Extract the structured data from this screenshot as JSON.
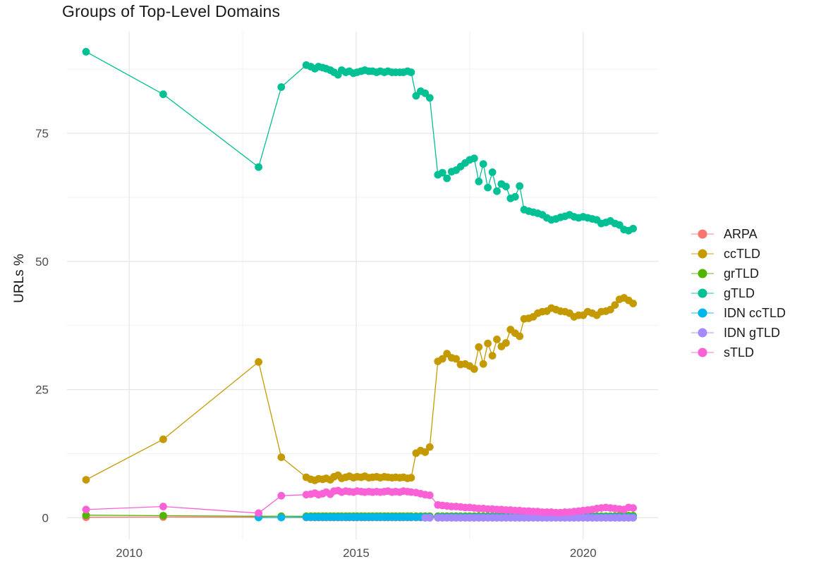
{
  "title": "Groups of Top-Level Domains",
  "y_axis": {
    "label": "URLs %",
    "ticks": [
      "0",
      "25",
      "50",
      "75"
    ]
  },
  "x_axis": {
    "ticks": [
      "2010",
      "2015",
      "2020"
    ]
  },
  "legend": {
    "items": [
      {
        "label": "ARPA",
        "color": "#F8766D"
      },
      {
        "label": "ccTLD",
        "color": "#C49A00"
      },
      {
        "label": "grTLD",
        "color": "#53B400"
      },
      {
        "label": "gTLD",
        "color": "#00C094"
      },
      {
        "label": "IDN ccTLD",
        "color": "#00B6EB"
      },
      {
        "label": "IDN gTLD",
        "color": "#A58AFF"
      },
      {
        "label": "sTLD",
        "color": "#FB61D7"
      }
    ]
  },
  "chart_data": {
    "type": "line",
    "title": "Groups of Top-Level Domains",
    "xlabel": "",
    "ylabel": "URLs %",
    "grid": true,
    "legend_position": "right",
    "xlim": [
      2008.63,
      2021.65
    ],
    "ylim": [
      -4.2,
      94.8
    ],
    "x_ticks": [
      2010,
      2015,
      2020
    ],
    "x_minor_ticks": [
      2012.5,
      2017.5
    ],
    "y_ticks": [
      0,
      25,
      50,
      75
    ],
    "y_minor_ticks": [
      12.5,
      37.5,
      62.5,
      87.5
    ],
    "x": [
      2009.05,
      2010.75,
      2012.85,
      2013.35,
      2013.9,
      2014.0,
      2014.09,
      2014.17,
      2014.26,
      2014.34,
      2014.43,
      2014.51,
      2014.6,
      2014.68,
      2014.77,
      2014.85,
      2014.94,
      2015.02,
      2015.11,
      2015.19,
      2015.28,
      2015.36,
      2015.45,
      2015.53,
      2015.62,
      2015.7,
      2015.79,
      2015.87,
      2015.96,
      2016.04,
      2016.13,
      2016.21,
      2016.32,
      2016.42,
      2016.52,
      2016.62,
      2016.8,
      2016.9,
      2017.0,
      2017.1,
      2017.2,
      2017.3,
      2017.4,
      2017.5,
      2017.6,
      2017.7,
      2017.8,
      2017.9,
      2018.0,
      2018.1,
      2018.2,
      2018.3,
      2018.4,
      2018.5,
      2018.6,
      2018.7,
      2018.8,
      2018.9,
      2019.0,
      2019.1,
      2019.2,
      2019.3,
      2019.4,
      2019.5,
      2019.6,
      2019.7,
      2019.8,
      2019.9,
      2020.0,
      2020.1,
      2020.2,
      2020.3,
      2020.4,
      2020.5,
      2020.6,
      2020.7,
      2020.8,
      2020.9,
      2021.0,
      2021.1
    ],
    "series": [
      {
        "name": "ARPA",
        "color": "#F8766D",
        "values": [
          0.1,
          0.15,
          0.1,
          0.05,
          0.05,
          0.05,
          0.05,
          0.05,
          0.05,
          0.05,
          0.05,
          0.05,
          0.05,
          0.05,
          0.05,
          0.05,
          0.05,
          0.05,
          0.05,
          0.05,
          0.05,
          0.05,
          0.05,
          0.05,
          0.05,
          0.05,
          0.05,
          0.05,
          0.05,
          0.05,
          0.05,
          0.05,
          0.05,
          0.05,
          0.05,
          0.05,
          0.05,
          0.05,
          0.05,
          0.05,
          0.05,
          0.05,
          0.05,
          0.05,
          0.05,
          0.05,
          0.05,
          0.05,
          0.05,
          0.05,
          0.05,
          0.05,
          0.05,
          0.05,
          0.05,
          0.05,
          0.05,
          0.05,
          0.05,
          0.05,
          0.05,
          0.05,
          0.05,
          0.05,
          0.05,
          0.05,
          0.05,
          0.05,
          0.05,
          0.05,
          0.05,
          0.05,
          0.05,
          0.05,
          0.05,
          0.05,
          0.05,
          0.05,
          0.05,
          0.05
        ]
      },
      {
        "name": "ccTLD",
        "color": "#C49A00",
        "values": [
          7.4,
          15.3,
          30.4,
          11.8,
          7.9,
          7.5,
          7.3,
          7.6,
          7.5,
          7.7,
          7.4,
          8.0,
          8.3,
          7.7,
          7.9,
          8.1,
          7.8,
          8.0,
          7.9,
          8.1,
          7.8,
          7.9,
          8.0,
          7.8,
          8.0,
          7.9,
          7.8,
          7.9,
          7.8,
          7.9,
          7.7,
          7.8,
          12.6,
          13.1,
          12.8,
          13.8,
          30.5,
          31.0,
          32.0,
          31.2,
          31.0,
          29.9,
          30.0,
          29.6,
          29.0,
          33.3,
          30.0,
          34.0,
          31.6,
          34.8,
          33.4,
          34.1,
          36.7,
          36.0,
          35.4,
          38.8,
          38.9,
          39.2,
          39.9,
          40.2,
          40.3,
          40.9,
          40.6,
          40.3,
          40.2,
          39.9,
          39.2,
          39.5,
          39.5,
          40.2,
          39.9,
          39.5,
          40.2,
          40.3,
          40.6,
          41.5,
          42.6,
          42.9,
          42.4,
          41.8
        ]
      },
      {
        "name": "grTLD",
        "color": "#53B400",
        "values": [
          0.5,
          0.4,
          0.3,
          0.3,
          0.3,
          0.3,
          0.3,
          0.3,
          0.3,
          0.3,
          0.3,
          0.3,
          0.3,
          0.3,
          0.3,
          0.3,
          0.3,
          0.3,
          0.3,
          0.3,
          0.3,
          0.3,
          0.3,
          0.3,
          0.3,
          0.3,
          0.3,
          0.3,
          0.3,
          0.3,
          0.3,
          0.3,
          0.3,
          0.3,
          0.3,
          0.3,
          0.3,
          0.3,
          0.3,
          0.3,
          0.3,
          0.3,
          0.3,
          0.3,
          0.3,
          0.3,
          0.3,
          0.3,
          0.3,
          0.3,
          0.3,
          0.3,
          0.3,
          0.3,
          0.3,
          0.3,
          0.3,
          0.3,
          0.3,
          0.3,
          0.3,
          0.3,
          0.3,
          0.3,
          0.3,
          0.3,
          0.3,
          0.3,
          0.3,
          0.3,
          0.3,
          0.3,
          0.3,
          0.3,
          0.3,
          0.3,
          0.4,
          0.4,
          0.4,
          0.4
        ]
      },
      {
        "name": "gTLD",
        "color": "#00C094",
        "values": [
          90.9,
          82.6,
          68.4,
          84.0,
          88.3,
          88.0,
          87.6,
          88.0,
          87.8,
          87.6,
          87.3,
          86.9,
          86.4,
          87.3,
          86.9,
          87.1,
          86.7,
          86.9,
          87.1,
          87.3,
          87.1,
          87.1,
          86.9,
          87.1,
          86.9,
          87.1,
          86.9,
          86.9,
          86.9,
          86.9,
          87.1,
          86.9,
          82.3,
          83.2,
          82.8,
          81.9,
          66.9,
          67.3,
          66.2,
          67.5,
          67.8,
          68.5,
          69.2,
          69.8,
          70.1,
          65.6,
          69.0,
          64.4,
          67.4,
          63.7,
          65.1,
          64.6,
          62.3,
          62.6,
          64.7,
          60.1,
          59.8,
          59.6,
          59.4,
          59.1,
          58.5,
          58.1,
          58.3,
          58.6,
          58.8,
          59.1,
          58.7,
          58.5,
          58.7,
          58.5,
          58.3,
          58.1,
          57.4,
          57.6,
          57.9,
          57.4,
          57.1,
          56.2,
          56.0,
          56.4
        ]
      },
      {
        "name": "IDN ccTLD",
        "color": "#00B6EB",
        "values": [
          null,
          null,
          0.05,
          0.05,
          0.1,
          0.1,
          0.1,
          0.1,
          0.1,
          0.1,
          0.1,
          0.1,
          0.1,
          0.1,
          0.1,
          0.1,
          0.1,
          0.1,
          0.1,
          0.1,
          0.1,
          0.1,
          0.1,
          0.1,
          0.1,
          0.1,
          0.1,
          0.1,
          0.1,
          0.1,
          0.1,
          0.1,
          0.1,
          0.1,
          0.1,
          0.1,
          0.1,
          0.1,
          0.1,
          0.1,
          0.1,
          0.1,
          0.1,
          0.1,
          0.1,
          0.1,
          0.1,
          0.1,
          0.1,
          0.1,
          0.1,
          0.1,
          0.1,
          0.1,
          0.1,
          0.1,
          0.1,
          0.1,
          0.1,
          0.1,
          0.1,
          0.1,
          0.1,
          0.1,
          0.1,
          0.1,
          0.1,
          0.1,
          0.1,
          0.1,
          0.1,
          0.1,
          0.1,
          0.1,
          0.1,
          0.1,
          0.1,
          0.1,
          0.1,
          0.1
        ]
      },
      {
        "name": "IDN gTLD",
        "color": "#A58AFF",
        "values": [
          null,
          null,
          null,
          null,
          null,
          null,
          null,
          null,
          null,
          null,
          null,
          null,
          null,
          null,
          null,
          null,
          null,
          null,
          null,
          null,
          null,
          null,
          null,
          null,
          null,
          null,
          null,
          null,
          null,
          null,
          null,
          null,
          null,
          null,
          0.0,
          0.0,
          0.0,
          0.0,
          0.0,
          0.0,
          0.0,
          0.0,
          0.0,
          0.0,
          0.0,
          0.0,
          0.0,
          0.0,
          0.0,
          0.0,
          0.0,
          0.0,
          0.0,
          0.0,
          0.0,
          0.0,
          0.0,
          0.0,
          0.0,
          0.0,
          0.0,
          0.0,
          0.0,
          0.0,
          0.0,
          0.0,
          0.0,
          0.0,
          0.0,
          0.0,
          0.0,
          0.0,
          0.0,
          0.0,
          0.0,
          0.0,
          0.0,
          0.0,
          0.0,
          0.0
        ]
      },
      {
        "name": "sTLD",
        "color": "#FB61D7",
        "values": [
          1.6,
          2.2,
          0.9,
          4.3,
          4.5,
          4.6,
          4.8,
          4.5,
          4.7,
          5.0,
          4.6,
          5.2,
          5.3,
          5.0,
          5.2,
          5.1,
          5.0,
          5.2,
          5.1,
          5.0,
          5.1,
          5.0,
          5.1,
          5.0,
          5.1,
          5.2,
          5.0,
          5.1,
          5.0,
          5.2,
          5.1,
          5.0,
          4.9,
          4.7,
          4.5,
          4.4,
          2.5,
          2.4,
          2.3,
          2.2,
          2.2,
          2.1,
          2.0,
          2.0,
          1.9,
          1.8,
          1.8,
          1.7,
          1.7,
          1.6,
          1.6,
          1.5,
          1.5,
          1.4,
          1.4,
          1.3,
          1.3,
          1.2,
          1.2,
          1.1,
          1.1,
          1.1,
          1.0,
          1.0,
          1.1,
          1.1,
          1.2,
          1.3,
          1.4,
          1.5,
          1.6,
          1.8,
          1.9,
          2.0,
          1.9,
          1.8,
          1.7,
          1.6,
          2.0,
          1.9
        ]
      }
    ]
  }
}
